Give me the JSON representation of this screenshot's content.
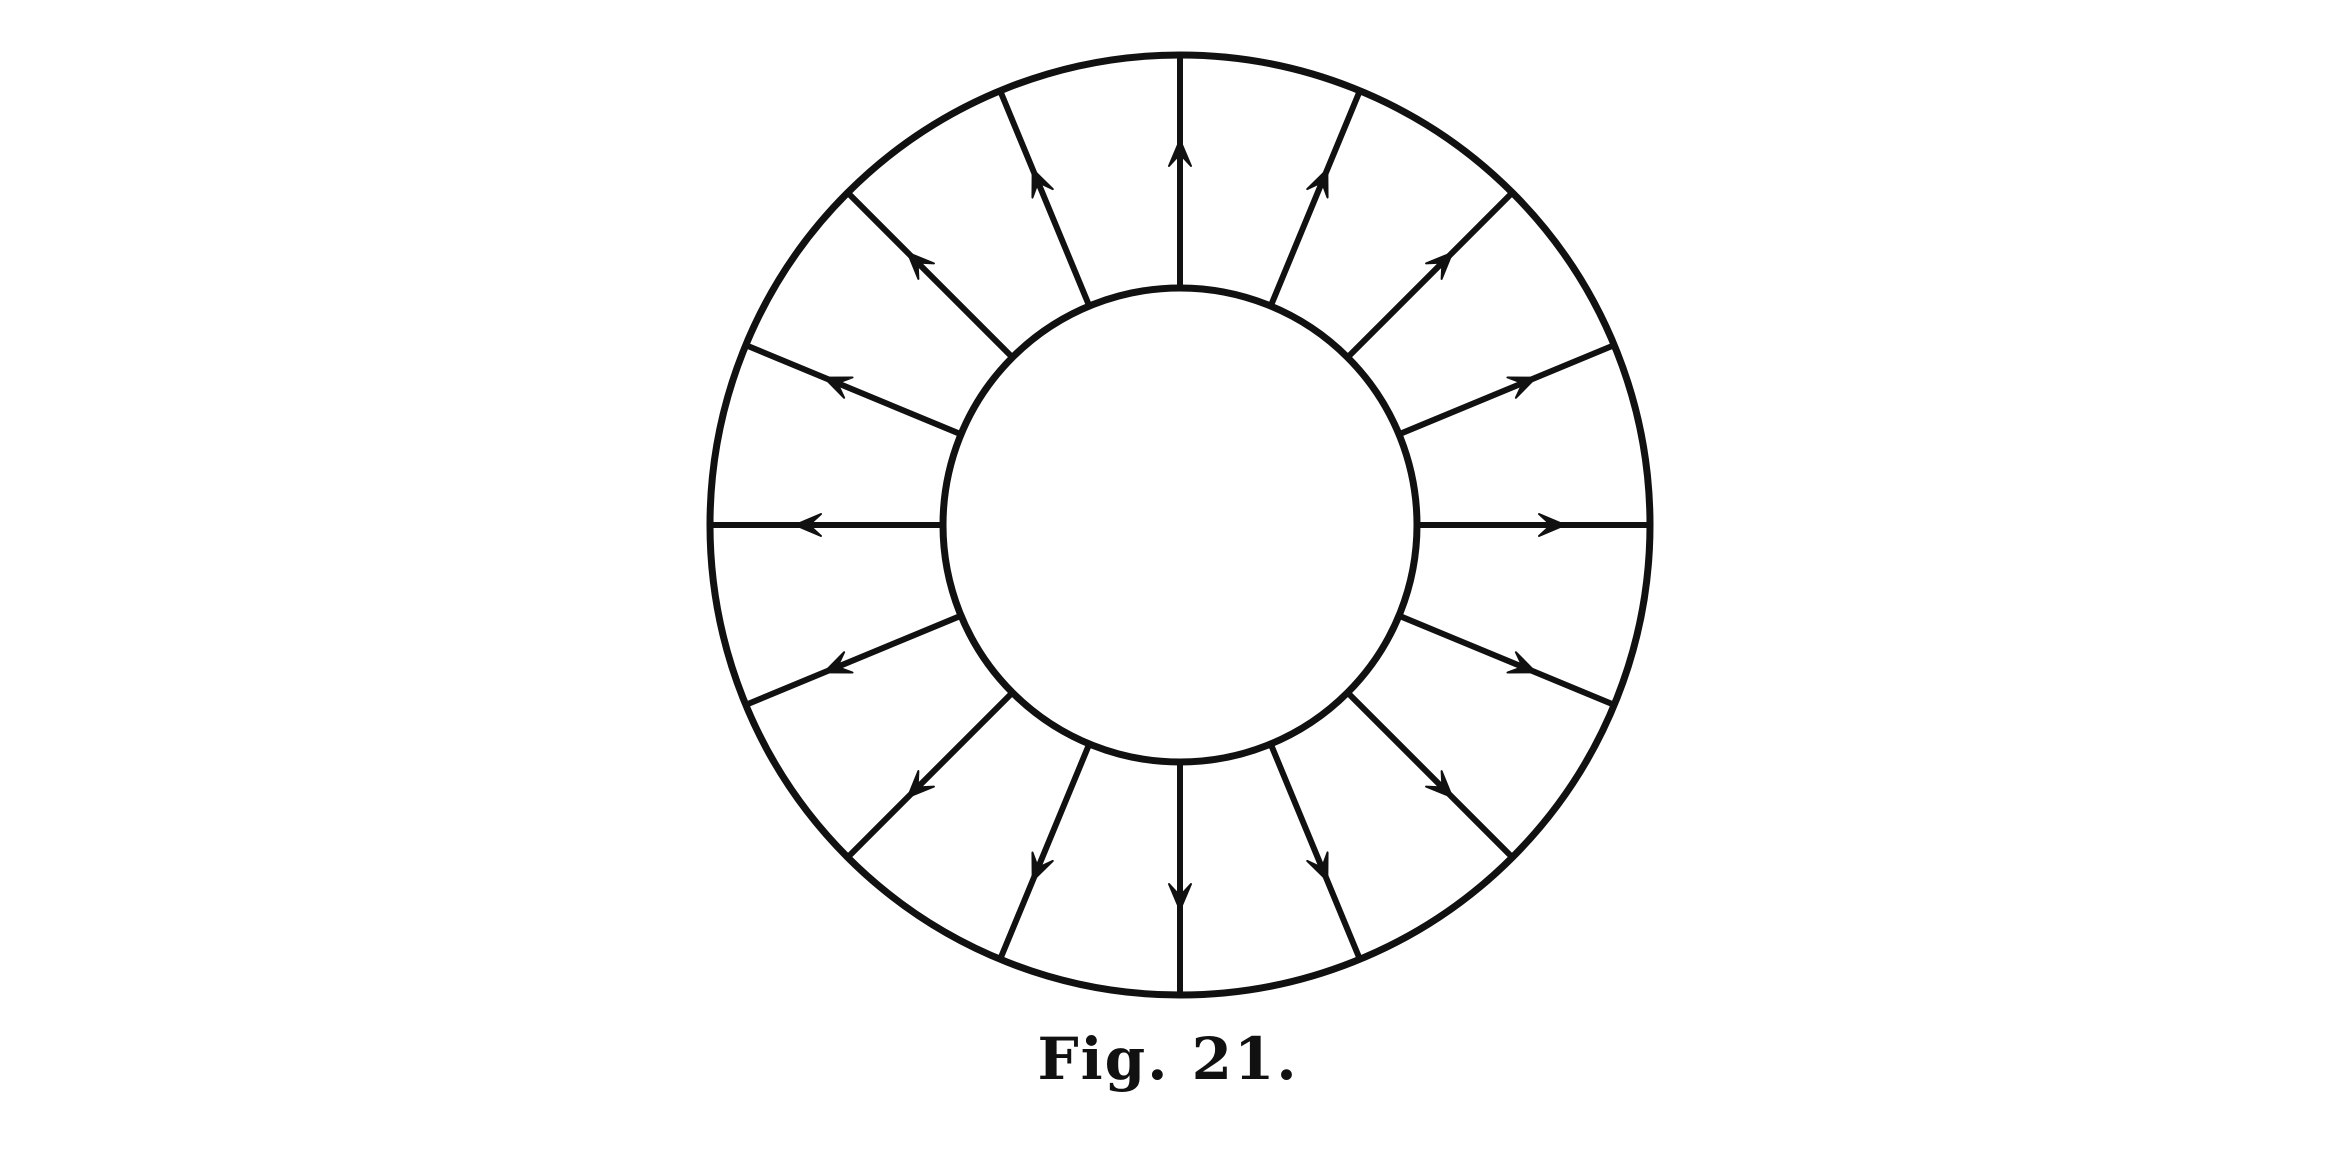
{
  "figure": {
    "caption": "Fig. 21.",
    "line_count": 16,
    "arrow_direction": "outward",
    "ink_color": "#111111",
    "background_color": "#ffffff"
  }
}
